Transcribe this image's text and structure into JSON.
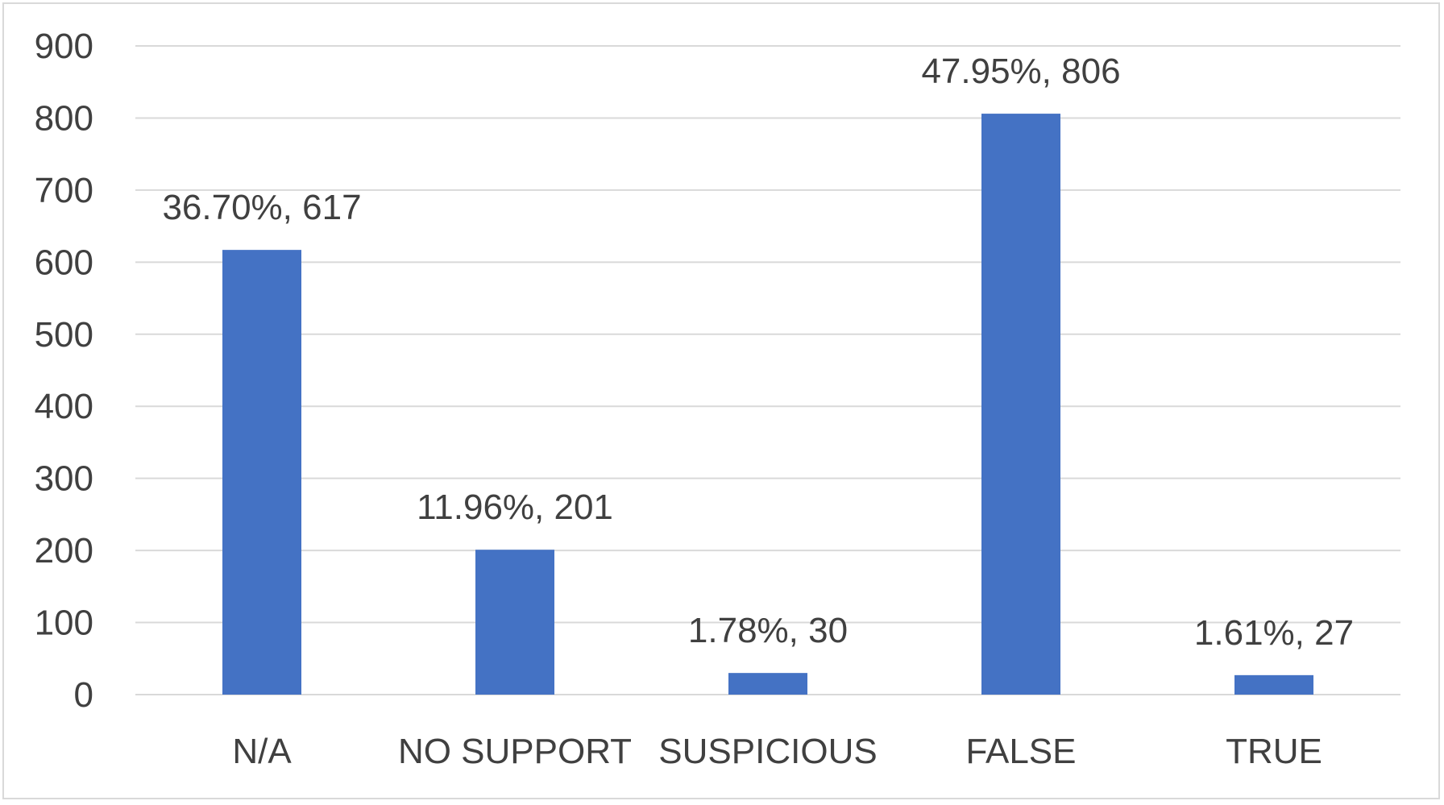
{
  "chart_data": {
    "type": "bar",
    "categories": [
      "N/A",
      "NO SUPPORT",
      "SUSPICIOUS",
      "FALSE",
      "TRUE"
    ],
    "values": [
      617,
      201,
      30,
      806,
      27
    ],
    "data_labels": [
      "36.70%, 617",
      "11.96%, 201",
      "1.78%, 30",
      "47.95%, 806",
      "1.61%, 27"
    ],
    "y_ticks": [
      "0",
      "100",
      "200",
      "300",
      "400",
      "500",
      "600",
      "700",
      "800",
      "900"
    ],
    "ylim": [
      0,
      900
    ],
    "grid": true,
    "legend": "none",
    "bar_color": "#4472C4",
    "title": "",
    "xlabel": "",
    "ylabel": ""
  }
}
